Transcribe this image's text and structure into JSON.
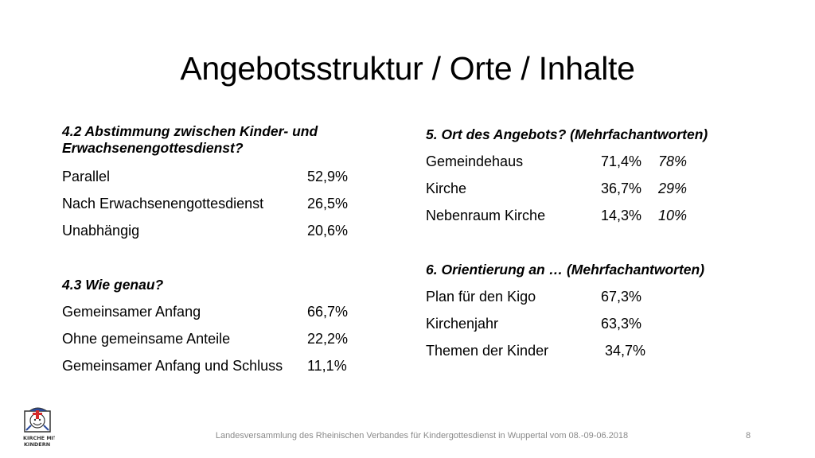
{
  "title": "Angebotsstruktur / Orte / Inhalte",
  "left": {
    "q1_heading": "4.2 Abstimmung zwischen Kinder- und Erwachsenengottesdienst?",
    "q1_rows": [
      {
        "label": "Parallel",
        "value": "52,9%"
      },
      {
        "label": "Nach Erwachsenengottesdienst",
        "value": "26,5%"
      },
      {
        "label": "Unabhängig",
        "value": "20,6%"
      }
    ],
    "q2_heading": "4.3 Wie genau?",
    "q2_rows": [
      {
        "label": "Gemeinsamer Anfang",
        "value": "66,7%"
      },
      {
        "label": "Ohne gemeinsame Anteile",
        "value": "22,2%"
      },
      {
        "label": "Gemeinsamer Anfang und Schluss",
        "value": "11,1%"
      }
    ]
  },
  "right": {
    "q1_heading": "5. Ort des Angebots? (Mehrfachantworten)",
    "q1_rows": [
      {
        "label": "Gemeindehaus",
        "value": "71,4%",
        "compare": "78%"
      },
      {
        "label": "Kirche",
        "value": "36,7%",
        "compare": "29%"
      },
      {
        "label": "Nebenraum Kirche",
        "value": "14,3%",
        "compare": "10%"
      }
    ],
    "q2_heading": "6. Orientierung an … (Mehrfachantworten)",
    "q2_rows": [
      {
        "label": "Plan für den Kigo",
        "value": "67,3%"
      },
      {
        "label": "Kirchenjahr",
        "value": "63,3%"
      },
      {
        "label": "Themen der Kinder",
        "value": "34,7%"
      }
    ]
  },
  "logo": {
    "text_line1": "KIRCHE MIT",
    "text_line2": "KINDERN"
  },
  "footer": "Landesversammlung des Rheinischen Verbandes für Kindergottesdienst in Wuppertal vom 08.-09-06.2018",
  "page_number": "8"
}
